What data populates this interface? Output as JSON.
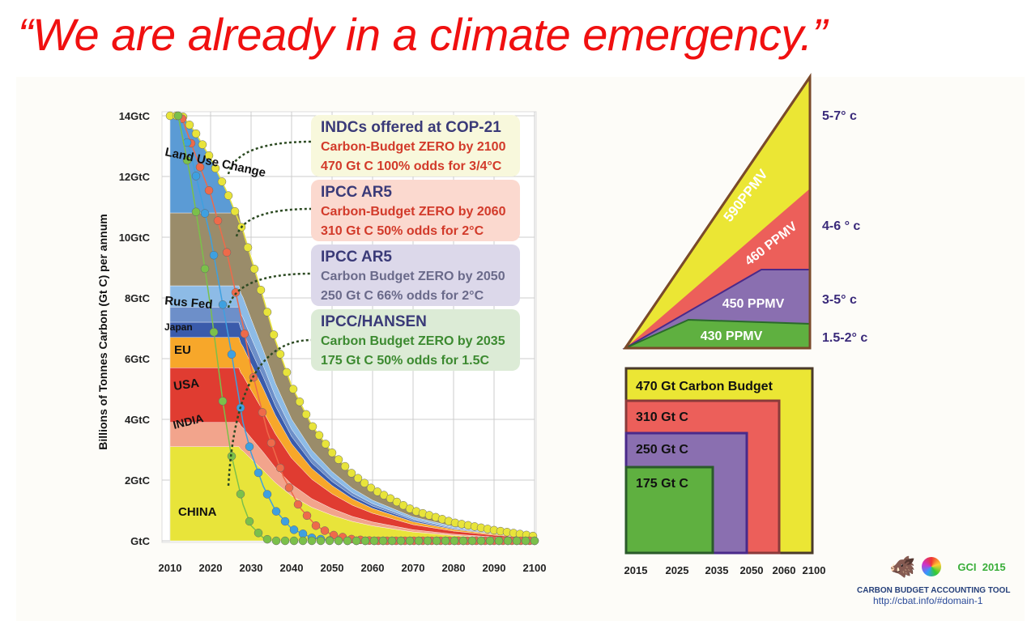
{
  "headline": "“We are already in a climate emergency.”",
  "chart_data": [
    {
      "type": "area",
      "ylabel": "Billions of Tonnes Carbon (Gt C) per annum",
      "xlim": [
        2010,
        2100
      ],
      "ylim": [
        0,
        14
      ],
      "x_ticks": [
        "2010",
        "2020",
        "2030",
        "2040",
        "2050",
        "2060",
        "2070",
        "2080",
        "2090",
        "2100"
      ],
      "y_ticks": [
        "GtC",
        "2GtC",
        "4GtC",
        "6GtC",
        "8GtC",
        "10GtC",
        "12GtC",
        "14GtC"
      ],
      "grid": true,
      "stack_layers_2010": [
        {
          "name": "CHINA",
          "value": 3.1,
          "color": "#e8e43a"
        },
        {
          "name": "INDIA",
          "value": 0.8,
          "color": "#f2a48c"
        },
        {
          "name": "USA",
          "value": 1.8,
          "color": "#e03c31"
        },
        {
          "name": "EU",
          "value": 1.0,
          "color": "#f7a72a"
        },
        {
          "name": "Japan",
          "value": 0.5,
          "color": "#3a5bab"
        },
        {
          "name": "",
          "value": 0.5,
          "color": "#6d8fc9"
        },
        {
          "name": "Rus Fed",
          "value": 0.7,
          "color": "#8dbbe6"
        },
        {
          "name": "",
          "value": 2.4,
          "color": "#9a8c6a"
        },
        {
          "name": "Land Use Change",
          "value": 2.9,
          "color": "#5b9bd5"
        }
      ],
      "series": [
        {
          "name": "INDCs offered at COP-21",
          "color": "#e8e43a",
          "x": [
            2010,
            2013,
            2016,
            2020,
            2024,
            2028,
            2030,
            2033,
            2036,
            2040,
            2045,
            2050,
            2055,
            2060,
            2070,
            2080,
            2090,
            2100
          ],
          "y": [
            14,
            14,
            13.5,
            12.6,
            11.5,
            10.2,
            9.3,
            8.0,
            6.6,
            5.1,
            3.8,
            2.9,
            2.2,
            1.7,
            1.0,
            0.6,
            0.35,
            0.15
          ]
        },
        {
          "name": "IPCC AR5 2060",
          "color": "#ee6a4a",
          "x": [
            2013,
            2016,
            2020,
            2024,
            2028,
            2030,
            2034,
            2038,
            2042,
            2046,
            2050,
            2055,
            2060
          ],
          "y": [
            13.9,
            12.8,
            11.4,
            9.5,
            7.1,
            5.7,
            3.6,
            2.1,
            1.1,
            0.5,
            0.2,
            0.05,
            0
          ]
        },
        {
          "name": "IPCC AR5 2050",
          "color": "#3ea0e0",
          "x": [
            2012,
            2015,
            2020,
            2025,
            2028,
            2030,
            2033,
            2036,
            2040,
            2045,
            2050
          ],
          "y": [
            14,
            12.8,
            10.0,
            6.3,
            3.9,
            2.9,
            1.8,
            1.0,
            0.4,
            0.1,
            0
          ]
        },
        {
          "name": "IPCC/HANSEN 2035",
          "color": "#7bc04a",
          "x": [
            2012,
            2015,
            2018,
            2020,
            2023,
            2025,
            2028,
            2030,
            2033,
            2035
          ],
          "y": [
            14,
            12.0,
            9.5,
            7.7,
            4.6,
            2.9,
            1.2,
            0.5,
            0.1,
            0
          ]
        }
      ],
      "labels": [
        "Land Use Change",
        "Rus Fed",
        "Japan",
        "EU",
        "USA",
        "INDIA",
        "CHINA"
      ]
    },
    {
      "type": "area",
      "levels": [
        {
          "label": "430 PPMV",
          "temp": "1.5-2° c",
          "color": "#5fb040"
        },
        {
          "label": "450 PPMV",
          "temp": "3-5° c",
          "color": "#8a6fb0"
        },
        {
          "label": "460 PPMV",
          "temp": "4-6 ° c",
          "color": "#ec5f5a"
        },
        {
          "label": "590PPMV",
          "temp": "5-7° c",
          "color": "#ebe634"
        }
      ]
    },
    {
      "type": "area",
      "budgets": [
        {
          "label": "470 Gt Carbon Budget",
          "gtc": 470,
          "end": 2100,
          "color": "#ebe634"
        },
        {
          "label": "310 Gt C",
          "gtc": 310,
          "end": 2060,
          "color": "#ec5f5a"
        },
        {
          "label": "250 Gt C",
          "gtc": 250,
          "end": 2050,
          "color": "#8a6fb0"
        },
        {
          "label": "175 Gt C",
          "gtc": 175,
          "end": 2035,
          "color": "#5fb040"
        }
      ],
      "x_ticks": [
        "2015",
        "2025",
        "2035",
        "2050",
        "2060",
        "2100"
      ]
    }
  ],
  "boxes": [
    {
      "title": "INDCs offered at COP-21",
      "line1": "Carbon-Budget ZERO by 2100",
      "line2": "470 Gt C 100% odds for 3/4°C",
      "bg": "#f8f8dc",
      "color": "#d23a2a"
    },
    {
      "title": "IPCC AR5",
      "line1": "Carbon-Budget ZERO by 2060",
      "line2": "310 Gt C 50% odds for 2°C",
      "bg": "#fbd9cf",
      "color": "#d23a2a"
    },
    {
      "title": "IPCC AR5",
      "line1": "Carbon Budget ZERO by 2050",
      "line2": "250 Gt C 66% odds for 2°C",
      "bg": "#dcd8ea",
      "color": "#6a6a8a"
    },
    {
      "title": "IPCC/HANSEN",
      "line1": "Carbon Budget ZERO by 2035",
      "line2": "175 Gt C 50% odds for 1.5C",
      "bg": "#dcebd6",
      "color": "#3c8a30"
    }
  ],
  "logo": {
    "org": "GCI  2015",
    "tool": "CARBON BUDGET ACCOUNTING TOOL",
    "url": "http://cbat.info/#domain-1"
  }
}
